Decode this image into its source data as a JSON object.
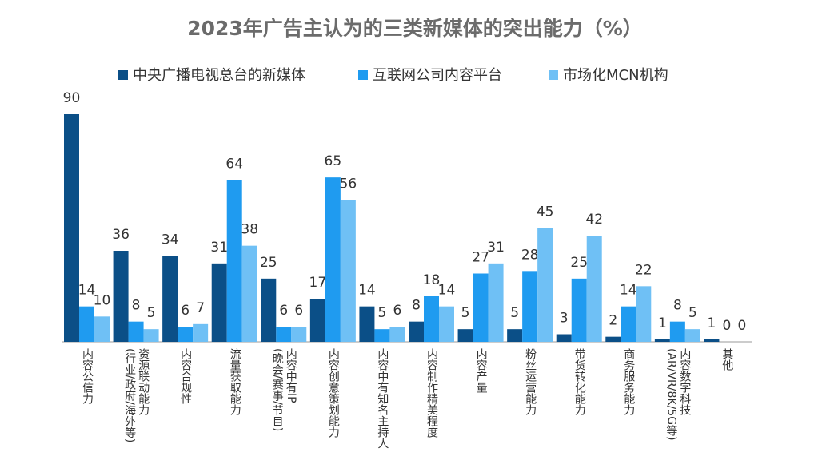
{
  "chart_data": {
    "type": "bar",
    "title": "2023年广告主认为的三类新媒体的突出能力（%）",
    "categories": [
      "内容公信力",
      "资源联动能力\n(行业/政府/海外等)",
      "内容合规性",
      "流量获取能力",
      "内容中有IP\n(晚会/赛事/节目)",
      "内容创意策划能力",
      "内容中有知名主持人",
      "内容制作精美程度",
      "内容产量",
      "粉丝运营能力",
      "带货转化能力",
      "商务服务能力",
      "内容数字科技\n(AR/VR/8K/5G等)",
      "其他"
    ],
    "series": [
      {
        "name": "中央广播电视总台的新媒体",
        "color": "#0b4f87",
        "values": [
          90,
          36,
          34,
          31,
          25,
          17,
          14,
          8,
          5,
          5,
          3,
          2,
          1,
          1
        ]
      },
      {
        "name": "互联网公司内容平台",
        "color": "#1f9bf0",
        "values": [
          14,
          8,
          6,
          64,
          6,
          65,
          5,
          18,
          27,
          28,
          25,
          14,
          8,
          0
        ]
      },
      {
        "name": "市场化MCN机构",
        "color": "#6fc0f5",
        "values": [
          10,
          5,
          7,
          38,
          6,
          56,
          6,
          14,
          31,
          45,
          42,
          22,
          5,
          0
        ]
      }
    ],
    "ylim": [
      0,
      90
    ],
    "legend": "top"
  }
}
